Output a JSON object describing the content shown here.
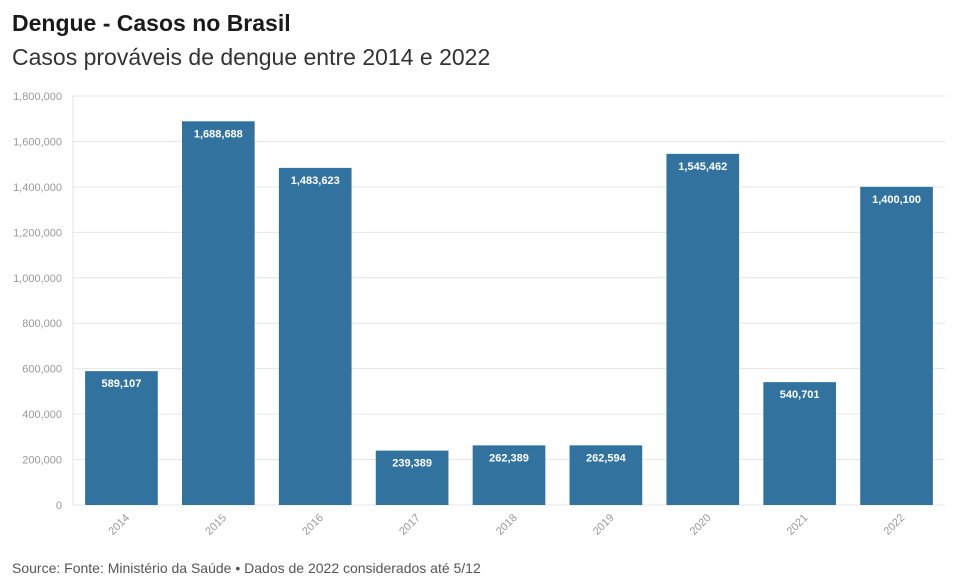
{
  "header": {
    "title": "Dengue - Casos no Brasil",
    "subtitle": "Casos prováveis de dengue entre 2014 e 2022"
  },
  "footer": {
    "source": "Source: Fonte: Ministério da Saúde • Dados de 2022 considerados até 5/12"
  },
  "colors": {
    "bar": "#31739e",
    "grid": "#e6e6e6",
    "tick_text": "#999999"
  },
  "chart_data": {
    "type": "bar",
    "title": "Dengue - Casos no Brasil",
    "subtitle": "Casos prováveis de dengue entre 2014 e 2022",
    "xlabel": "",
    "ylabel": "",
    "categories": [
      "2014",
      "2015",
      "2016",
      "2017",
      "2018",
      "2019",
      "2020",
      "2021",
      "2022"
    ],
    "values": [
      589107,
      1688688,
      1483623,
      239389,
      262389,
      262594,
      1545462,
      540701,
      1400100
    ],
    "data_labels": [
      "589,107",
      "1,688,688",
      "1,483,623",
      "239,389",
      "262,389",
      "262,594",
      "1,545,462",
      "540,701",
      "1,400,100"
    ],
    "ylim": [
      0,
      1800000
    ],
    "yticks": [
      0,
      200000,
      400000,
      600000,
      800000,
      1000000,
      1200000,
      1400000,
      1600000,
      1800000
    ],
    "ytick_labels": [
      "0",
      "200,000",
      "400,000",
      "600,000",
      "800,000",
      "1,000,000",
      "1,200,000",
      "1,400,000",
      "1,600,000",
      "1,800,000"
    ],
    "grid": true,
    "legend": "none"
  }
}
